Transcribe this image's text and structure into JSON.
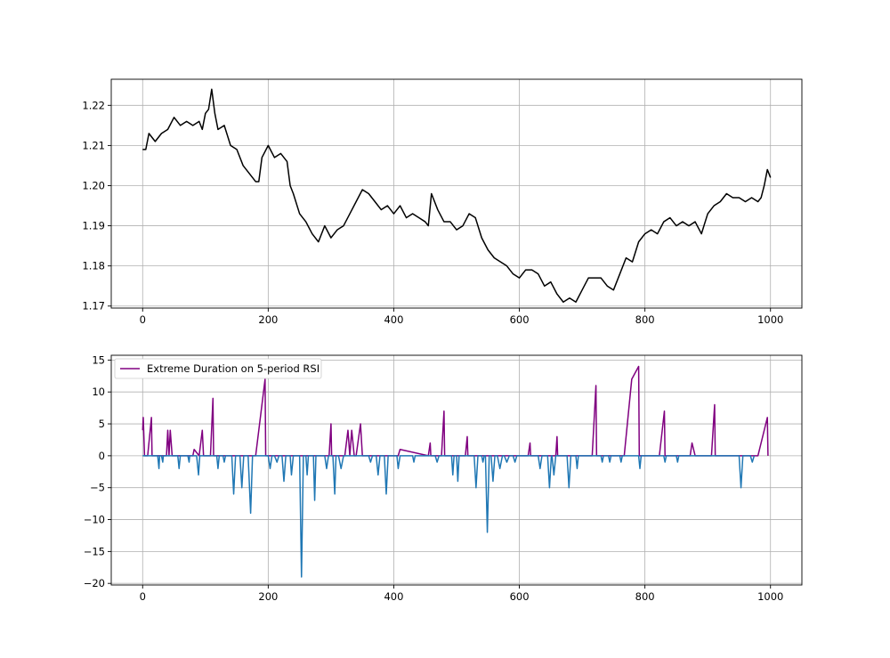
{
  "chart_data": [
    {
      "type": "line",
      "title": "",
      "xlabel": "",
      "ylabel": "",
      "xlim": [
        -50,
        1050
      ],
      "ylim": [
        1.1695,
        1.2265
      ],
      "xticks": [
        0,
        200,
        400,
        600,
        800,
        1000
      ],
      "xtick_labels": [
        "0",
        "200",
        "400",
        "600",
        "800",
        "1000"
      ],
      "yticks": [
        1.17,
        1.18,
        1.19,
        1.2,
        1.21,
        1.22
      ],
      "ytick_labels": [
        "1.17",
        "1.18",
        "1.19",
        "1.20",
        "1.21",
        "1.22"
      ],
      "grid": true,
      "legend": "none",
      "colors": {
        "line": "#000000",
        "grid": "#b0b0b0"
      },
      "series": [
        {
          "x": [
            0,
            5,
            10,
            15,
            20,
            30,
            40,
            50,
            60,
            70,
            80,
            90,
            95,
            100,
            105,
            110,
            115,
            120,
            130,
            140,
            150,
            160,
            170,
            180,
            185,
            190,
            200,
            210,
            220,
            230,
            235,
            240,
            250,
            260,
            270,
            280,
            290,
            300,
            310,
            320,
            330,
            340,
            350,
            360,
            370,
            380,
            390,
            400,
            410,
            420,
            430,
            440,
            450,
            455,
            460,
            470,
            480,
            490,
            500,
            510,
            520,
            530,
            540,
            550,
            560,
            570,
            580,
            590,
            600,
            610,
            620,
            630,
            640,
            650,
            660,
            670,
            680,
            690,
            700,
            710,
            720,
            730,
            740,
            750,
            760,
            770,
            780,
            790,
            800,
            810,
            820,
            830,
            840,
            850,
            860,
            870,
            880,
            890,
            900,
            910,
            920,
            930,
            940,
            950,
            960,
            970,
            980,
            985,
            990,
            995,
            1000
          ],
          "y": [
            1.209,
            1.209,
            1.213,
            1.212,
            1.211,
            1.213,
            1.214,
            1.217,
            1.215,
            1.216,
            1.215,
            1.216,
            1.214,
            1.218,
            1.219,
            1.224,
            1.218,
            1.214,
            1.215,
            1.21,
            1.209,
            1.205,
            1.203,
            1.201,
            1.201,
            1.207,
            1.21,
            1.207,
            1.208,
            1.206,
            1.2,
            1.198,
            1.193,
            1.191,
            1.188,
            1.186,
            1.19,
            1.187,
            1.189,
            1.19,
            1.193,
            1.196,
            1.199,
            1.198,
            1.196,
            1.194,
            1.195,
            1.193,
            1.195,
            1.192,
            1.193,
            1.192,
            1.191,
            1.19,
            1.198,
            1.194,
            1.191,
            1.191,
            1.189,
            1.19,
            1.193,
            1.192,
            1.187,
            1.184,
            1.182,
            1.181,
            1.18,
            1.178,
            1.177,
            1.179,
            1.179,
            1.178,
            1.175,
            1.176,
            1.173,
            1.171,
            1.172,
            1.171,
            1.174,
            1.177,
            1.177,
            1.177,
            1.175,
            1.174,
            1.178,
            1.182,
            1.181,
            1.186,
            1.188,
            1.189,
            1.188,
            1.191,
            1.192,
            1.19,
            1.191,
            1.19,
            1.191,
            1.188,
            1.193,
            1.195,
            1.196,
            1.198,
            1.197,
            1.197,
            1.196,
            1.197,
            1.196,
            1.197,
            1.2,
            1.204,
            1.202
          ]
        }
      ]
    },
    {
      "type": "line",
      "title": "",
      "xlabel": "",
      "ylabel": "",
      "xlim": [
        -50,
        1050
      ],
      "ylim": [
        -20.25,
        15.75
      ],
      "xticks": [
        0,
        200,
        400,
        600,
        800,
        1000
      ],
      "xtick_labels": [
        "0",
        "200",
        "400",
        "600",
        "800",
        "1000"
      ],
      "yticks": [
        -20,
        -15,
        -10,
        -5,
        0,
        5,
        10,
        15
      ],
      "ytick_labels": [
        "−20",
        "−15",
        "−10",
        "−5",
        "0",
        "5",
        "10",
        "15"
      ],
      "grid": true,
      "legend": "top-left",
      "colors": {
        "positive": "#800080",
        "negative": "#1f77b4",
        "grid": "#b0b0b0"
      },
      "series": [
        {
          "name": "Extreme Duration on 5-period RSI",
          "color": "#800080",
          "x": [
            0,
            1,
            2,
            3,
            8,
            14,
            15,
            38,
            40,
            42,
            44,
            47,
            80,
            82,
            90,
            95,
            97,
            108,
            112,
            113,
            180,
            195,
            196,
            297,
            300,
            301,
            322,
            327,
            330,
            333,
            337,
            340,
            347,
            350,
            351,
            407,
            410,
            455,
            458,
            459,
            476,
            480,
            481,
            514,
            517,
            518,
            614,
            617,
            618,
            658,
            660,
            661,
            700,
            716,
            722,
            723,
            767,
            779,
            790,
            791,
            823,
            831,
            832,
            872,
            875,
            880,
            890,
            906,
            911,
            912,
            980,
            995,
            996
          ],
          "y": [
            4,
            6,
            3,
            0,
            0,
            6,
            0,
            0,
            4,
            0,
            4,
            0,
            0,
            1,
            0,
            4,
            0,
            0,
            9,
            0,
            0,
            12,
            0,
            0,
            5,
            0,
            0,
            4,
            0,
            4,
            0,
            0,
            5,
            0,
            0,
            0,
            1,
            0,
            2,
            0,
            0,
            7,
            0,
            0,
            3,
            0,
            0,
            2,
            0,
            0,
            3,
            0,
            0,
            0,
            11,
            0,
            0,
            12,
            14,
            0,
            0,
            7,
            0,
            0,
            2,
            0,
            0,
            0,
            8,
            0,
            0,
            6,
            0
          ]
        },
        {
          "color": "#1f77b4",
          "x": [
            0,
            24,
            26,
            27,
            30,
            32,
            33,
            56,
            58,
            60,
            72,
            74,
            75,
            86,
            89,
            91,
            118,
            120,
            122,
            128,
            130,
            132,
            142,
            145,
            148,
            155,
            158,
            161,
            168,
            172,
            175,
            200,
            203,
            206,
            210,
            214,
            217,
            222,
            225,
            228,
            235,
            237,
            240,
            250,
            253,
            256,
            260,
            262,
            264,
            272,
            274,
            276,
            290,
            293,
            296,
            303,
            306,
            308,
            312,
            316,
            320,
            360,
            363,
            366,
            372,
            375,
            378,
            385,
            388,
            391,
            405,
            407,
            410,
            430,
            432,
            434,
            466,
            469,
            472,
            492,
            494,
            496,
            500,
            502,
            504,
            528,
            531,
            534,
            540,
            542,
            544,
            546,
            549,
            552,
            555,
            558,
            561,
            565,
            569,
            573,
            576,
            580,
            584,
            590,
            593,
            596,
            630,
            633,
            636,
            645,
            648,
            651,
            652,
            655,
            658,
            676,
            679,
            682,
            690,
            692,
            694,
            730,
            732,
            734,
            742,
            744,
            746,
            760,
            762,
            764,
            790,
            792,
            794,
            830,
            832,
            834,
            850,
            852,
            854,
            950,
            953,
            956,
            968,
            971,
            974
          ],
          "y": [
            0,
            0,
            -2,
            0,
            0,
            -1,
            0,
            0,
            -2,
            0,
            0,
            -1,
            0,
            0,
            -3,
            0,
            0,
            -2,
            0,
            0,
            -1,
            0,
            0,
            -6,
            0,
            0,
            -5,
            0,
            0,
            -9,
            0,
            0,
            -2,
            0,
            0,
            -1,
            0,
            0,
            -4,
            0,
            0,
            -3,
            0,
            0,
            -19,
            0,
            0,
            -3,
            0,
            0,
            -7,
            0,
            0,
            -2,
            0,
            0,
            -6,
            0,
            0,
            -2,
            0,
            0,
            -1,
            0,
            0,
            -3,
            0,
            0,
            -6,
            0,
            0,
            -2,
            0,
            0,
            -1,
            0,
            0,
            -1,
            0,
            0,
            -3,
            0,
            0,
            -4,
            0,
            0,
            -5,
            0,
            0,
            -1,
            0,
            0,
            -12,
            0,
            0,
            -4,
            0,
            0,
            -2,
            0,
            0,
            -1,
            0,
            0,
            -1,
            0,
            0,
            -2,
            0,
            0,
            -5,
            0,
            0,
            -3,
            0,
            0,
            -5,
            0,
            0,
            -2,
            0,
            0,
            -1,
            0,
            0,
            -1,
            0,
            0,
            -1,
            0,
            0,
            -2,
            0,
            0,
            -1,
            0,
            0,
            -1,
            0,
            0,
            -5,
            0,
            0,
            -1,
            0
          ]
        }
      ]
    }
  ]
}
